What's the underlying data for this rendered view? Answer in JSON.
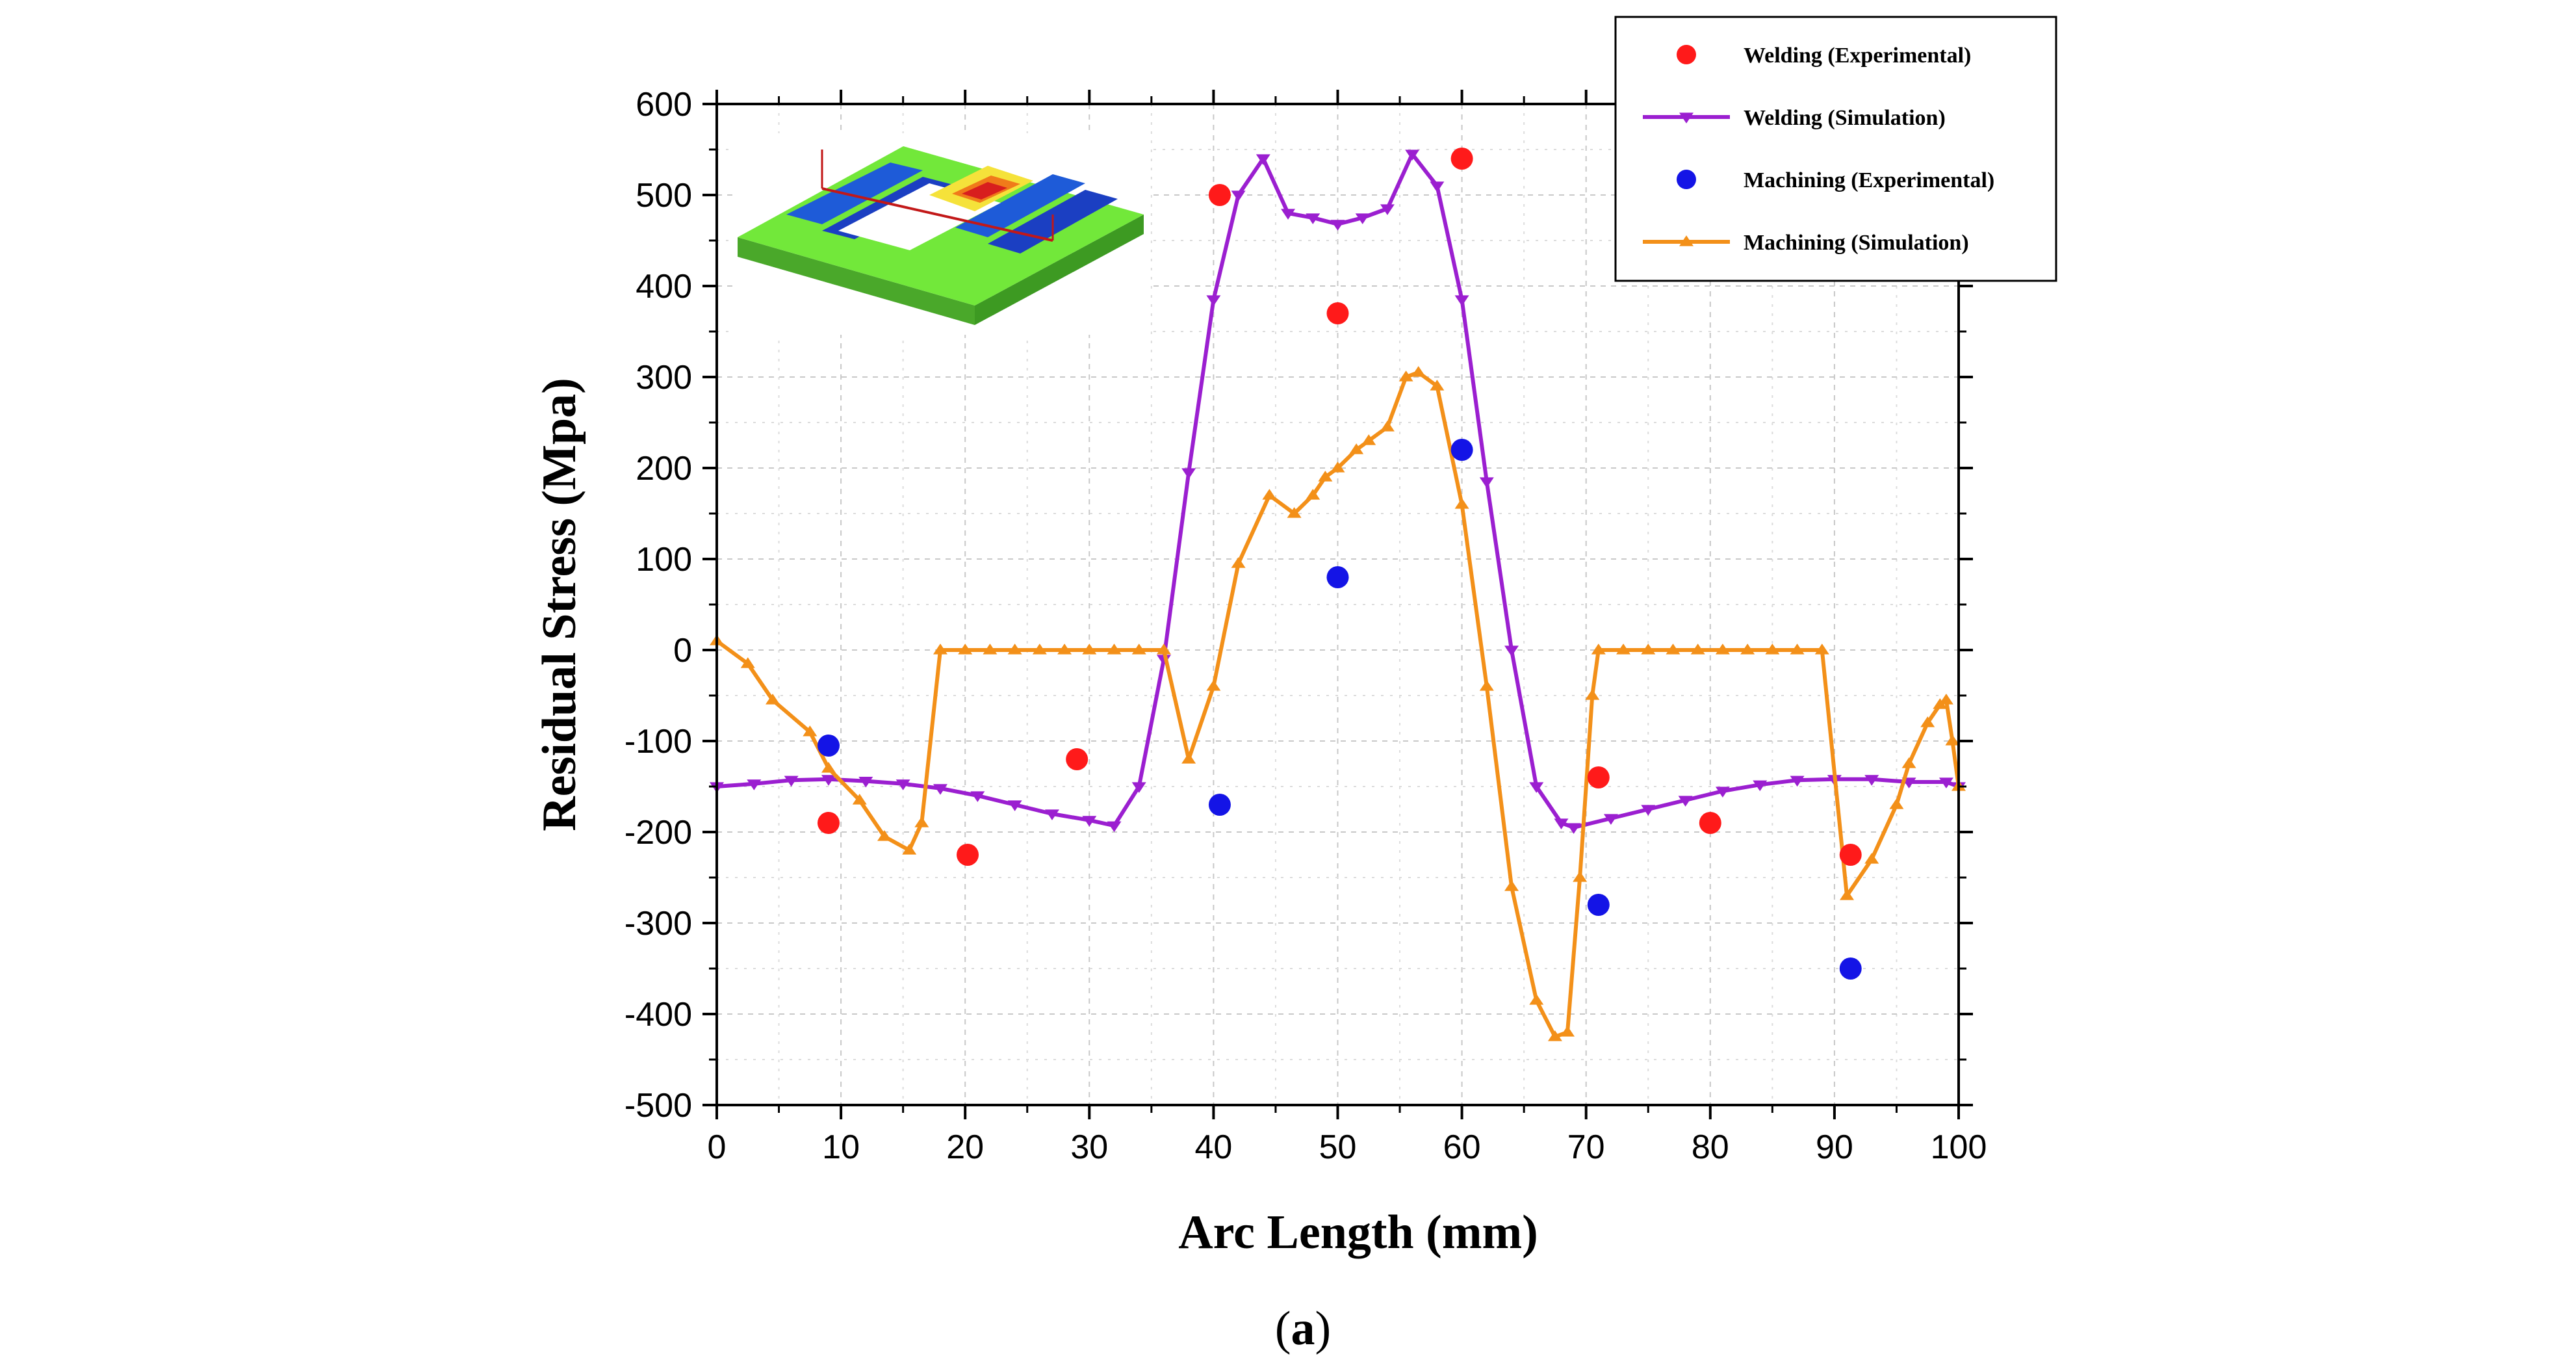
{
  "chart_data": {
    "type": "line",
    "title": "",
    "xlabel": "Arc Length (mm)",
    "ylabel": "Residual Stress (Mpa)",
    "xlim": [
      0,
      100
    ],
    "ylim": [
      -500,
      600
    ],
    "xticks": [
      0,
      10,
      20,
      30,
      40,
      50,
      60,
      70,
      80,
      90,
      100
    ],
    "yticks": [
      -500,
      -400,
      -300,
      -200,
      -100,
      0,
      100,
      200,
      300,
      400,
      500,
      600
    ],
    "grid": true,
    "legend_position": "top-right",
    "caption": {
      "open": "(",
      "letter": "a",
      "close": ")"
    },
    "inset": "3D contour plot of residual stress on a plate with a rectangular cut-out",
    "series": [
      {
        "name": "Welding (Experimental)",
        "kind": "scatter",
        "color": "#ff1a1a",
        "x": [
          9,
          20.2,
          29,
          40.5,
          50,
          60,
          71,
          80,
          91.3
        ],
        "y": [
          -190,
          -225,
          -120,
          500,
          370,
          540,
          -140,
          -190,
          -225
        ]
      },
      {
        "name": "Welding (Simulation)",
        "kind": "line",
        "marker": "triangle-down",
        "color": "#9b1fd0",
        "x": [
          0,
          3,
          6,
          9,
          12,
          15,
          18,
          21,
          24,
          27,
          30,
          32,
          34,
          36,
          38,
          40,
          42,
          44,
          46,
          48,
          50,
          52,
          54,
          56,
          58,
          60,
          62,
          64,
          66,
          68,
          69,
          72,
          75,
          78,
          81,
          84,
          87,
          90,
          93,
          96,
          99,
          100
        ],
        "y": [
          -150,
          -147,
          -143,
          -142,
          -144,
          -147,
          -152,
          -160,
          -170,
          -180,
          -187,
          -193,
          -150,
          -10,
          195,
          385,
          500,
          540,
          480,
          475,
          468,
          475,
          485,
          545,
          510,
          385,
          185,
          0,
          -150,
          -190,
          -195,
          -185,
          -175,
          -165,
          -155,
          -148,
          -143,
          -142,
          -142,
          -145,
          -145,
          -150
        ]
      },
      {
        "name": "Machining (Experimental)",
        "kind": "scatter",
        "color": "#1414e6",
        "x": [
          9,
          40.5,
          50,
          60,
          71,
          91.3
        ],
        "y": [
          -105,
          -170,
          80,
          220,
          -280,
          -350
        ]
      },
      {
        "name": "Machining (Simulation)",
        "kind": "line",
        "marker": "triangle-up",
        "color": "#f39019",
        "x": [
          0,
          2.5,
          4.5,
          7.5,
          9,
          11.5,
          13.5,
          15.5,
          16.5,
          18,
          20,
          22,
          24,
          26,
          28,
          30,
          32,
          34,
          36,
          38,
          40,
          42,
          44.5,
          46.5,
          48,
          49,
          50,
          51.5,
          52.5,
          54,
          55.5,
          56.5,
          58,
          60,
          62,
          64,
          66,
          67.5,
          68.5,
          69.5,
          70.5,
          71,
          73,
          75,
          77,
          79,
          81,
          83,
          85,
          87,
          89,
          91,
          93,
          95,
          96,
          97.5,
          98.5,
          99,
          99.5,
          100
        ],
        "y": [
          10,
          -15,
          -55,
          -90,
          -130,
          -165,
          -205,
          -220,
          -190,
          0,
          0,
          0,
          0,
          0,
          0,
          0,
          0,
          0,
          0,
          -120,
          -40,
          95,
          170,
          150,
          170,
          190,
          200,
          220,
          230,
          245,
          300,
          305,
          290,
          160,
          -40,
          -260,
          -385,
          -425,
          -420,
          -250,
          -50,
          0,
          0,
          0,
          0,
          0,
          0,
          0,
          0,
          0,
          0,
          -270,
          -230,
          -170,
          -125,
          -80,
          -60,
          -55,
          -100,
          -150
        ]
      }
    ]
  }
}
